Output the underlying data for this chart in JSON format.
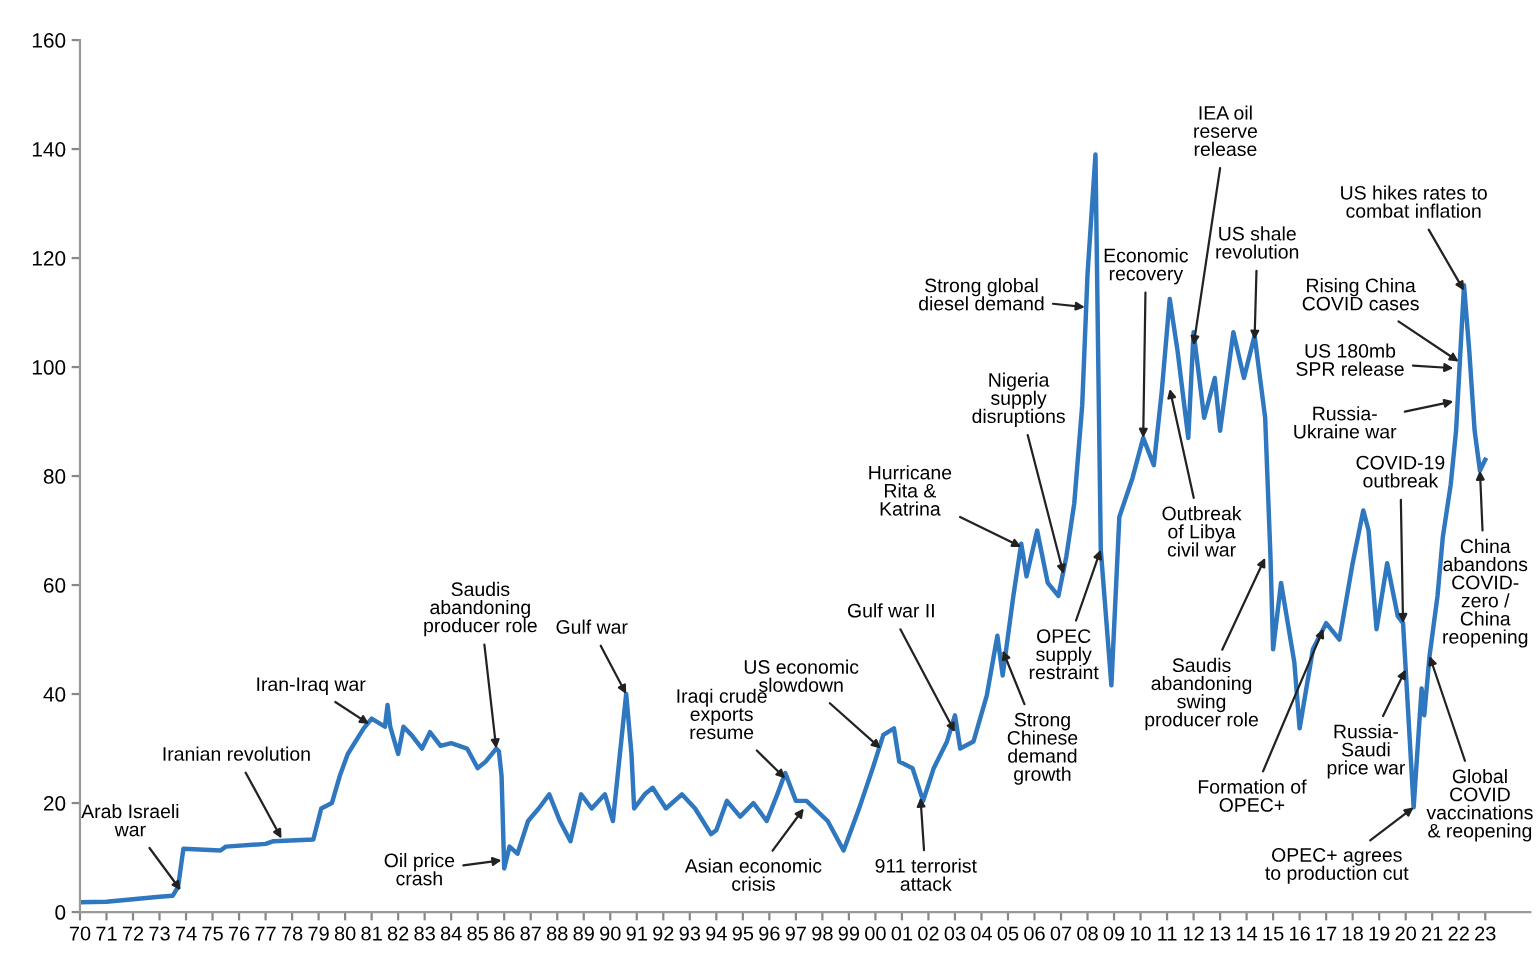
{
  "chart_data": {
    "type": "line",
    "x": [
      1970,
      1971,
      1973.0,
      1973.5,
      1973.7,
      1973.9,
      1975.3,
      1975.5,
      1977,
      1977.3,
      1978.8,
      1979.1,
      1979.5,
      1979.8,
      1980.1,
      1980.7,
      1981,
      1981.5,
      1981.6,
      1981.7,
      1982,
      1982.2,
      1982.5,
      1982.9,
      1983.2,
      1983.6,
      1984.0,
      1984.6,
      1985.0,
      1985.3,
      1985.7,
      1985.8,
      1985.9,
      1986.0,
      1986.2,
      1986.5,
      1986.9,
      1987.3,
      1987.7,
      1988.1,
      1988.5,
      1988.9,
      1989.3,
      1989.8,
      1990.1,
      1990.6,
      1990.8,
      1990.9,
      1991.3,
      1991.6,
      1992.1,
      1992.7,
      1993.2,
      1993.8,
      1994.0,
      1994.4,
      1994.9,
      1995.4,
      1995.9,
      1996.3,
      1996.6,
      1997.0,
      1997.4,
      1998.2,
      1998.8,
      1999.4,
      1999.9,
      2000.3,
      2000.7,
      2000.9,
      2001.4,
      2001.8,
      2002.2,
      2002.7,
      2003.0,
      2003.2,
      2003.7,
      2004.2,
      2004.6,
      2004.8,
      2005.2,
      2005.5,
      2005.7,
      2006.1,
      2006.5,
      2006.9,
      2007.2,
      2007.5,
      2007.8,
      2008.0,
      2008.3,
      2008.5,
      2008.9,
      2009.2,
      2009.7,
      2010.1,
      2010.5,
      2010.8,
      2011.1,
      2011.4,
      2011.8,
      2012.0,
      2012.4,
      2012.8,
      2013.0,
      2013.5,
      2013.9,
      2014.3,
      2014.7,
      2014.9,
      2015.0,
      2015.3,
      2015.8,
      2016.0,
      2016.5,
      2017.0,
      2017.5,
      2018.0,
      2018.4,
      2018.6,
      2018.9,
      2019.3,
      2019.7,
      2019.9,
      2020.3,
      2020.6,
      2020.7,
      2020.9,
      2021.2,
      2021.4,
      2021.7,
      2021.9,
      2022.2,
      2022.4,
      2022.6,
      2022.8,
      2023.0
    ],
    "series": [
      {
        "color": "#2f78c0",
        "values": [
          1.8,
          1.9,
          2.8,
          3,
          4.6,
          11.6,
          11.3,
          12,
          12.5,
          13,
          13.3,
          19,
          20,
          25,
          29,
          33.7,
          35.5,
          34,
          38,
          34,
          29,
          34,
          32.5,
          30,
          33,
          30.5,
          31,
          30,
          26.4,
          27.6,
          30,
          29.5,
          25,
          8,
          12,
          10.7,
          16.7,
          19,
          21.6,
          16.7,
          13,
          21.6,
          19,
          21.6,
          16.7,
          40,
          29,
          19,
          21.6,
          22.8,
          19,
          21.6,
          19,
          14.3,
          15,
          20.4,
          17.5,
          20,
          16.7,
          21.6,
          25.5,
          20.4,
          20.4,
          16.7,
          11.3,
          19.2,
          26.4,
          32.5,
          33.7,
          27.6,
          26.4,
          20.4,
          26.4,
          31.3,
          36.1,
          30,
          31.3,
          39.7,
          50.7,
          43.4,
          57.9,
          67.6,
          61.6,
          70,
          60.4,
          58,
          65.2,
          75,
          93,
          117,
          139,
          66.5,
          41.6,
          72.5,
          79.7,
          87,
          82,
          95.5,
          112.5,
          102.8,
          87,
          106.4,
          90.7,
          98,
          88.3,
          106.4,
          98,
          105.8,
          90.7,
          65.2,
          48.2,
          60.4,
          45.8,
          33.7,
          48.2,
          53,
          50,
          64,
          73.7,
          70,
          51.9,
          64,
          54.3,
          53,
          19.2,
          41,
          36.1,
          47,
          58,
          68.8,
          78.5,
          88.3,
          115,
          102.8,
          88.3,
          81,
          83
        ]
      }
    ],
    "xlim": [
      1970,
      2024.7
    ],
    "ylim": [
      0,
      160
    ],
    "yticks": [
      0,
      20,
      40,
      60,
      80,
      100,
      120,
      140,
      160
    ],
    "xticks": [
      {
        "value": 1970,
        "label": "70"
      },
      {
        "value": 1971,
        "label": "71"
      },
      {
        "value": 1972,
        "label": "72"
      },
      {
        "value": 1973,
        "label": "73"
      },
      {
        "value": 1974,
        "label": "74"
      },
      {
        "value": 1975,
        "label": "75"
      },
      {
        "value": 1976,
        "label": "76"
      },
      {
        "value": 1977,
        "label": "77"
      },
      {
        "value": 1978,
        "label": "78"
      },
      {
        "value": 1979,
        "label": "79"
      },
      {
        "value": 1980,
        "label": "80"
      },
      {
        "value": 1981,
        "label": "81"
      },
      {
        "value": 1982,
        "label": "82"
      },
      {
        "value": 1983,
        "label": "83"
      },
      {
        "value": 1984,
        "label": "84"
      },
      {
        "value": 1985,
        "label": "85"
      },
      {
        "value": 1986,
        "label": "86"
      },
      {
        "value": 1987,
        "label": "87"
      },
      {
        "value": 1988,
        "label": "88"
      },
      {
        "value": 1989,
        "label": "89"
      },
      {
        "value": 1990,
        "label": "90"
      },
      {
        "value": 1991,
        "label": "91"
      },
      {
        "value": 1992,
        "label": "92"
      },
      {
        "value": 1993,
        "label": "93"
      },
      {
        "value": 1994,
        "label": "94"
      },
      {
        "value": 1995,
        "label": "95"
      },
      {
        "value": 1996,
        "label": "96"
      },
      {
        "value": 1997,
        "label": "97"
      },
      {
        "value": 1998,
        "label": "98"
      },
      {
        "value": 1999,
        "label": "99"
      },
      {
        "value": 2000,
        "label": "00"
      },
      {
        "value": 2001,
        "label": "01"
      },
      {
        "value": 2002,
        "label": "02"
      },
      {
        "value": 2003,
        "label": "03"
      },
      {
        "value": 2004,
        "label": "04"
      },
      {
        "value": 2005,
        "label": "05"
      },
      {
        "value": 2006,
        "label": "06"
      },
      {
        "value": 2007,
        "label": "07"
      },
      {
        "value": 2008,
        "label": "08"
      },
      {
        "value": 2009,
        "label": "09"
      },
      {
        "value": 2010,
        "label": "10"
      },
      {
        "value": 2011,
        "label": "11"
      },
      {
        "value": 2012,
        "label": "12"
      },
      {
        "value": 2013,
        "label": "13"
      },
      {
        "value": 2014,
        "label": "14"
      },
      {
        "value": 2015,
        "label": "15"
      },
      {
        "value": 2016,
        "label": "16"
      },
      {
        "value": 2017,
        "label": "17"
      },
      {
        "value": 2018,
        "label": "18"
      },
      {
        "value": 2019,
        "label": "19"
      },
      {
        "value": 2020,
        "label": "20"
      },
      {
        "value": 2021,
        "label": "21"
      },
      {
        "value": 2022,
        "label": "22"
      },
      {
        "value": 2023,
        "label": "23"
      }
    ],
    "grid": false,
    "legend": false,
    "annotations": [
      {
        "text": "Arab Israeli\nwar",
        "x": 1973.8,
        "y": 4
      },
      {
        "text": "Iranian revolution",
        "x": 1977.6,
        "y": 13.5
      },
      {
        "text": "Iran-Iraq war",
        "x": 1980.9,
        "y": 34.5
      },
      {
        "text": "Saudis\nabandoning\nproducer role",
        "x": 1985.7,
        "y": 30
      },
      {
        "text": "Oil price\ncrash",
        "x": 1985.9,
        "y": 9.5
      },
      {
        "text": "Gulf war",
        "x": 1990.6,
        "y": 40
      },
      {
        "text": "Iraqi crude\nexports\nresume",
        "x": 1996.6,
        "y": 24.5
      },
      {
        "text": "Asian economic\ncrisis",
        "x": 1997.3,
        "y": 19
      },
      {
        "text": "US economic\nslowdown",
        "x": 2000.2,
        "y": 30
      },
      {
        "text": "Gulf war II",
        "x": 2003.0,
        "y": 33
      },
      {
        "text": "911 terrorist\nattack",
        "x": 2001.7,
        "y": 21
      },
      {
        "text": "Hurricane\nRita &\nKatrina",
        "x": 2005.5,
        "y": 67
      },
      {
        "text": "Nigeria\nsupply\ndisruptions",
        "x": 2007.1,
        "y": 62
      },
      {
        "text": "Strong global\ndiesel demand",
        "x": 2007.9,
        "y": 111
      },
      {
        "text": "Strong\nChinese\ndemand\ngrowth",
        "x": 2004.8,
        "y": 48
      },
      {
        "text": "OPEC\nsupply\nrestraint",
        "x": 2008.5,
        "y": 66.5
      },
      {
        "text": "Economic\nrecovery",
        "x": 2010.1,
        "y": 87
      },
      {
        "text": "IEA oil\nreserve\nrelease",
        "x": 2012.0,
        "y": 104
      },
      {
        "text": "US shale\nrevolution",
        "x": 2014.3,
        "y": 105
      },
      {
        "text": "Outbreak\nof Libya\ncivil war",
        "x": 2011.1,
        "y": 96
      },
      {
        "text": "Saudis\nabandoning\nswing\nproducer role",
        "x": 2014.7,
        "y": 65
      },
      {
        "text": "Formation of\nOPEC+",
        "x": 2016.9,
        "y": 52
      },
      {
        "text": "Rising China\nCOVID cases",
        "x": 2022.0,
        "y": 101
      },
      {
        "text": "US hikes rates to\ncombat inflation",
        "x": 2022.2,
        "y": 114
      },
      {
        "text": "US 180mb\nSPR release",
        "x": 2021.8,
        "y": 99.8
      },
      {
        "text": "Russia-\nUkraine war",
        "x": 2021.8,
        "y": 93.7
      },
      {
        "text": "COVID-19\noutbreak",
        "x": 2019.9,
        "y": 53
      },
      {
        "text": "Russia-\nSaudi\nprice war",
        "x": 2020.0,
        "y": 44.5
      },
      {
        "text": "OPEC+ agrees\nto production cut",
        "x": 2020.3,
        "y": 19.2
      },
      {
        "text": "Global\nCOVID\nvaccinations\n& reopening",
        "x": 2020.9,
        "y": 47
      },
      {
        "text": "China\nabandons\nCOVID-\nzero /\nChina\nreopening",
        "x": 2022.8,
        "y": 81
      }
    ]
  }
}
